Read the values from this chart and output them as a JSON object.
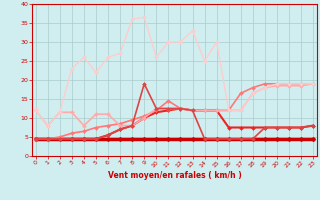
{
  "x": [
    0,
    1,
    2,
    3,
    4,
    5,
    6,
    7,
    8,
    9,
    10,
    11,
    12,
    13,
    14,
    15,
    16,
    17,
    18,
    19,
    20,
    21,
    22,
    23
  ],
  "series": [
    {
      "y": [
        4.5,
        4.5,
        4.5,
        4.5,
        4.5,
        4.5,
        4.5,
        4.5,
        4.5,
        4.5,
        4.5,
        4.5,
        4.5,
        4.5,
        4.5,
        4.5,
        4.5,
        4.5,
        4.5,
        4.5,
        4.5,
        4.5,
        4.5,
        4.5
      ],
      "color": "#cc0000",
      "lw": 2.5,
      "marker": "D",
      "ms": 2.5
    },
    {
      "y": [
        4.5,
        4.5,
        4.5,
        4.5,
        4.5,
        4.5,
        5.5,
        7.0,
        8.0,
        10.0,
        11.5,
        12.0,
        12.5,
        12.0,
        12.0,
        12.0,
        7.5,
        7.5,
        7.5,
        7.5,
        7.5,
        7.5,
        7.5,
        8.0
      ],
      "color": "#ee2222",
      "lw": 1.5,
      "marker": "D",
      "ms": 2.0
    },
    {
      "y": [
        4.5,
        4.5,
        5.0,
        6.0,
        6.5,
        7.5,
        8.0,
        8.5,
        9.5,
        10.5,
        12.0,
        14.5,
        12.5,
        12.0,
        12.0,
        12.0,
        12.0,
        16.5,
        18.0,
        19.0,
        19.0,
        19.0,
        19.0,
        19.0
      ],
      "color": "#ff7777",
      "lw": 1.2,
      "marker": "D",
      "ms": 2.0
    },
    {
      "y": [
        12.0,
        8.0,
        11.5,
        11.5,
        8.0,
        11.0,
        11.0,
        8.0,
        8.0,
        10.0,
        12.5,
        12.5,
        12.5,
        12.0,
        12.0,
        12.0,
        12.0,
        12.0,
        16.5,
        18.0,
        18.5,
        18.5,
        18.5,
        19.0
      ],
      "color": "#ffaaaa",
      "lw": 1.2,
      "marker": "D",
      "ms": 2.0
    },
    {
      "y": [
        12.0,
        8.0,
        11.5,
        23.0,
        26.0,
        22.0,
        26.0,
        27.0,
        36.0,
        36.5,
        26.0,
        30.0,
        30.0,
        33.0,
        25.0,
        30.0,
        12.0,
        12.0,
        16.5,
        18.0,
        19.0,
        19.0,
        19.0,
        19.0
      ],
      "color": "#ffcccc",
      "lw": 1.0,
      "marker": "D",
      "ms": 2.0
    },
    {
      "y": [
        4.5,
        4.5,
        4.5,
        4.5,
        4.5,
        4.5,
        5.5,
        7.0,
        8.0,
        19.0,
        12.5,
        12.5,
        12.5,
        12.0,
        4.5,
        4.5,
        4.5,
        4.5,
        4.5,
        7.5,
        7.5,
        7.5,
        7.5,
        8.0
      ],
      "color": "#dd4444",
      "lw": 1.2,
      "marker": "D",
      "ms": 2.0
    }
  ],
  "xlim": [
    -0.3,
    23.3
  ],
  "ylim": [
    0,
    40
  ],
  "yticks": [
    0,
    5,
    10,
    15,
    20,
    25,
    30,
    35,
    40
  ],
  "xticks": [
    0,
    1,
    2,
    3,
    4,
    5,
    6,
    7,
    8,
    9,
    10,
    11,
    12,
    13,
    14,
    15,
    16,
    17,
    18,
    19,
    20,
    21,
    22,
    23
  ],
  "xlabel": "Vent moyen/en rafales ( km/h )",
  "bg_color": "#d0eef0",
  "grid_color": "#bbdddd",
  "axis_color": "#cc0000",
  "label_color": "#cc0000",
  "tick_color": "#cc0000"
}
